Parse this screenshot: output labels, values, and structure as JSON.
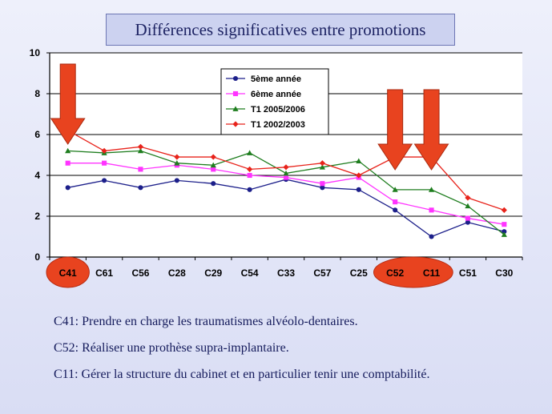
{
  "title": "Différences significatives entre promotions",
  "chart_data": {
    "type": "line",
    "categories": [
      "C41",
      "C61",
      "C56",
      "C28",
      "C29",
      "C54",
      "C33",
      "C57",
      "C25",
      "C52",
      "C11",
      "C51",
      "C30"
    ],
    "ylim": [
      0,
      10
    ],
    "yticks": [
      0,
      2,
      4,
      6,
      8,
      10
    ],
    "grid": true,
    "legend_position": "top-center",
    "series": [
      {
        "name": "5ème année",
        "color": "#1c1f8a",
        "marker": "circle",
        "values": [
          3.4,
          3.75,
          3.4,
          3.75,
          3.6,
          3.3,
          3.8,
          3.4,
          3.3,
          2.3,
          1.0,
          1.7,
          1.25
        ]
      },
      {
        "name": "6ème année",
        "color": "#ff33ff",
        "marker": "square",
        "values": [
          4.6,
          4.6,
          4.3,
          4.5,
          4.3,
          4.0,
          3.9,
          3.6,
          3.9,
          2.7,
          2.3,
          1.9,
          1.6
        ]
      },
      {
        "name": "T1 2005/2006",
        "color": "#1e7d1e",
        "marker": "triangle",
        "values": [
          5.2,
          5.1,
          5.2,
          4.6,
          4.5,
          5.1,
          4.1,
          4.4,
          4.7,
          3.3,
          3.3,
          2.5,
          1.1
        ]
      },
      {
        "name": "T1 2002/2003",
        "color": "#e8231b",
        "marker": "diamond",
        "values": [
          6.2,
          5.2,
          5.4,
          4.9,
          4.9,
          4.3,
          4.4,
          4.6,
          4.0,
          4.9,
          4.9,
          2.9,
          2.3
        ]
      }
    ],
    "highlighted_categories": [
      "C41",
      "C52",
      "C11"
    ],
    "highlight_color": "#e8431f"
  },
  "notes": [
    "C41: Prendre en charge les traumatismes alvéolo-dentaires.",
    "C52: Réaliser une prothèse supra-implantaire.",
    "C11: Gérer la structure du cabinet et en particulier tenir une comptabilité."
  ]
}
